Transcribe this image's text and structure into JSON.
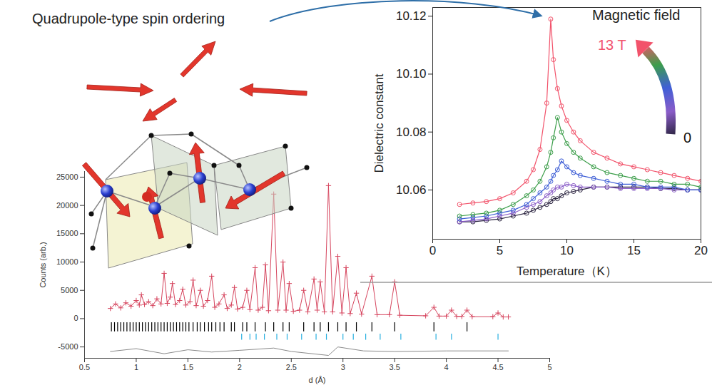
{
  "chart_data": [
    {
      "type": "line",
      "annotations": [
        {
          "text": "Quadrupole-type spin ordering"
        }
      ],
      "xlabel": "Temperature（K）",
      "ylabel": "Dielectric constant",
      "legend_title": "Magnetic field",
      "legend": "top-right",
      "marker": "circle",
      "xlim": [
        0,
        20
      ],
      "xticks": [
        0,
        5,
        10,
        15,
        20
      ],
      "ylim": [
        10.043,
        10.123
      ],
      "yticks": [
        10.06,
        10.08,
        {
          "value": 10.1,
          "label": "10.10"
        },
        10.12
      ],
      "x": [
        2,
        3,
        4,
        5,
        6,
        7,
        7.5,
        8,
        8.5,
        8.8,
        9,
        9.3,
        9.6,
        10,
        10.5,
        11,
        12,
        13,
        14,
        15,
        16,
        17,
        18,
        19,
        20
      ],
      "series": [
        {
          "name": "0",
          "color": "#2b2440",
          "values": [
            10.049,
            10.049,
            10.0495,
            10.05,
            10.051,
            10.052,
            10.053,
            10.054,
            10.055,
            10.056,
            10.057,
            10.057,
            10.058,
            10.059,
            10.0595,
            10.06,
            10.061,
            10.061,
            10.061,
            10.061,
            10.061,
            10.0605,
            10.0605,
            10.06,
            10.06
          ]
        },
        {
          "color": "#8a5cc8",
          "values": [
            10.049,
            10.0495,
            10.05,
            10.051,
            10.052,
            10.054,
            10.055,
            10.056,
            10.058,
            10.059,
            10.06,
            10.061,
            10.061,
            10.062,
            10.0615,
            10.061,
            10.061,
            10.061,
            10.0605,
            10.0605,
            10.0605,
            10.0605,
            10.06,
            10.06,
            10.06
          ]
        },
        {
          "color": "#3f5fd6",
          "values": [
            10.05,
            10.0505,
            10.051,
            10.052,
            10.053,
            10.055,
            10.057,
            10.059,
            10.061,
            10.063,
            10.065,
            10.067,
            10.07,
            10.068,
            10.066,
            10.065,
            10.064,
            10.063,
            10.062,
            10.062,
            10.061,
            10.061,
            10.061,
            10.06,
            10.06
          ]
        },
        {
          "color": "#3c9e4a",
          "values": [
            10.051,
            10.0515,
            10.052,
            10.053,
            10.055,
            10.058,
            10.06,
            10.063,
            10.068,
            10.073,
            10.078,
            10.085,
            10.08,
            10.076,
            10.073,
            10.071,
            10.068,
            10.066,
            10.065,
            10.064,
            10.063,
            10.063,
            10.062,
            10.062,
            10.061
          ]
        },
        {
          "name": "13 T",
          "color": "#f2536b",
          "values": [
            10.055,
            10.0555,
            10.056,
            10.057,
            10.059,
            10.063,
            10.067,
            10.074,
            10.09,
            10.119,
            10.105,
            10.095,
            10.089,
            10.084,
            10.08,
            10.077,
            10.073,
            10.071,
            10.069,
            10.068,
            10.067,
            10.066,
            10.065,
            10.064,
            10.063
          ]
        }
      ]
    },
    {
      "type": "line",
      "xlabel": "d (Å)",
      "ylabel": "Counts (arb.)",
      "xlim": [
        0.5,
        5
      ],
      "xticks": [
        0.5,
        1,
        1.5,
        2,
        2.5,
        3,
        3.5,
        4,
        4.5,
        5
      ],
      "ylim": [
        -7000,
        26000
      ],
      "yticks": [
        -5000,
        0,
        5000,
        10000,
        15000,
        20000,
        25000
      ],
      "series": [
        {
          "type": "line",
          "color": "#d6455e",
          "marker": "plus",
          "x": [
            0.75,
            0.8,
            0.85,
            0.9,
            0.95,
            1.0,
            1.03,
            1.05,
            1.08,
            1.12,
            1.16,
            1.2,
            1.24,
            1.27,
            1.3,
            1.33,
            1.35,
            1.38,
            1.42,
            1.45,
            1.48,
            1.52,
            1.55,
            1.58,
            1.62,
            1.65,
            1.69,
            1.73,
            1.76,
            1.8,
            1.85,
            1.88,
            1.92,
            1.95,
            1.98,
            2.03,
            2.07,
            2.1,
            2.15,
            2.18,
            2.22,
            2.25,
            2.28,
            2.33,
            2.37,
            2.42,
            2.45,
            2.48,
            2.52,
            2.58,
            2.62,
            2.66,
            2.72,
            2.75,
            2.78,
            2.82,
            2.86,
            2.9,
            2.95,
            2.99,
            3.03,
            3.07,
            3.13,
            3.18,
            3.28,
            3.33,
            3.45,
            3.5,
            3.55,
            3.8,
            3.88,
            3.93,
            4.0,
            4.05,
            4.1,
            4.15,
            4.2,
            4.25,
            4.45,
            4.5,
            4.55,
            4.6
          ],
          "values": [
            1800,
            2600,
            1900,
            2800,
            2200,
            3200,
            2400,
            4200,
            2500,
            3000,
            2300,
            3500,
            2600,
            8000,
            2700,
            3800,
            6200,
            2500,
            3200,
            5200,
            2400,
            3000,
            6800,
            2300,
            5000,
            2200,
            3200,
            7500,
            2000,
            2600,
            4200,
            1800,
            2400,
            5500,
            1700,
            2000,
            5000,
            1600,
            9000,
            1500,
            2000,
            9500,
            1400,
            22000,
            1500,
            10000,
            1500,
            6200,
            1300,
            1500,
            5000,
            1200,
            7000,
            1500,
            6500,
            1200,
            23500,
            1200,
            11000,
            1000,
            9000,
            900,
            4500,
            800,
            7500,
            700,
            700,
            6500,
            600,
            500,
            2000,
            450,
            450,
            1500,
            400,
            400,
            1500,
            350,
            350,
            1000,
            300,
            300
          ]
        },
        {
          "type": "tick",
          "color": "#000000",
          "x": [
            0.76,
            0.79,
            0.82,
            0.85,
            0.88,
            0.91,
            0.94,
            0.97,
            1.0,
            1.03,
            1.06,
            1.09,
            1.12,
            1.15,
            1.18,
            1.21,
            1.24,
            1.27,
            1.3,
            1.33,
            1.36,
            1.39,
            1.42,
            1.45,
            1.48,
            1.51,
            1.55,
            1.59,
            1.62,
            1.66,
            1.7,
            1.73,
            1.77,
            1.81,
            1.85,
            1.92,
            1.95,
            2.03,
            2.07,
            2.15,
            2.25,
            2.33,
            2.42,
            2.48,
            2.62,
            2.72,
            2.78,
            2.86,
            2.95,
            3.03,
            3.13,
            3.28,
            3.5,
            3.88,
            4.2
          ]
        },
        {
          "type": "tick",
          "color": "#2ab0e0",
          "x": [
            2.02,
            2.1,
            2.16,
            2.24,
            2.36,
            2.46,
            2.6,
            2.74,
            2.84,
            3.0,
            3.1,
            3.22,
            3.36,
            3.56,
            3.9,
            4.05,
            4.5
          ]
        },
        {
          "type": "line",
          "color": "#8a8a8a",
          "x": [
            0.75,
            1.0,
            1.27,
            1.5,
            1.73,
            2.0,
            2.33,
            2.5,
            2.86,
            2.95,
            3.2,
            3.5,
            4.0,
            4.6
          ],
          "values": [
            -5800,
            -5300,
            -6200,
            -5500,
            -5900,
            -5600,
            -5200,
            -5800,
            -6500,
            -5000,
            -5700,
            -5800,
            -5700,
            -5700
          ]
        }
      ]
    }
  ]
}
